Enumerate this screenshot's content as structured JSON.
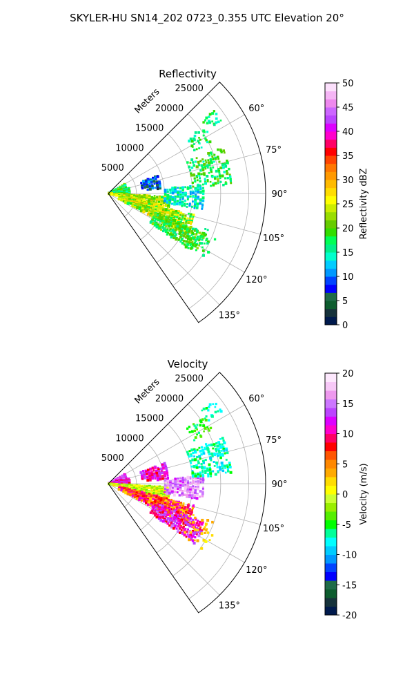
{
  "suptitle": "SKYLER-HU  SN14_202  0723_0.355 UTC Elevation 20°",
  "chart_data": [
    {
      "type": "scatter",
      "title": "Reflectivity",
      "r_axis_label": "Meters",
      "r_ticks": [
        "5000",
        "10000",
        "15000",
        "20000",
        "25000"
      ],
      "angle_ticks": [
        "60°",
        "75°",
        "90°",
        "105°",
        "120°",
        "135°"
      ],
      "colorbar": {
        "label": "Reflectivity dBZ",
        "range": [
          0,
          50
        ],
        "tick_labels": [
          "0",
          "5",
          "10",
          "15",
          "20",
          "25",
          "30",
          "35",
          "40",
          "45",
          "50"
        ]
      },
      "colormap": [
        "#001a4d",
        "#16323b",
        "#0d5c2e",
        "#1f6b48",
        "#0000ff",
        "#0044ff",
        "#0099ff",
        "#00ccff",
        "#00ffcc",
        "#00f08a",
        "#00ff55",
        "#33dd00",
        "#66cc00",
        "#99dd00",
        "#ccee00",
        "#ffff00",
        "#ffdd00",
        "#ffbb00",
        "#ff9900",
        "#ff7700",
        "#ff4400",
        "#ff0000",
        "#ff0066",
        "#ff00cc",
        "#dd00ff",
        "#bb44ff",
        "#cc66ff",
        "#ee88ee",
        "#f5b5f5",
        "#fce0fc"
      ],
      "data_range_m": [
        0,
        28000
      ],
      "azimuth_range_deg": [
        55,
        140
      ]
    },
    {
      "type": "scatter",
      "title": "Velocity",
      "r_axis_label": "Meters",
      "r_ticks": [
        "5000",
        "10000",
        "15000",
        "20000",
        "25000"
      ],
      "angle_ticks": [
        "60°",
        "75°",
        "90°",
        "105°",
        "120°",
        "135°"
      ],
      "colorbar": {
        "label": "Velocity (m/s)",
        "range": [
          -20,
          20
        ],
        "tick_labels": [
          "-20",
          "-15",
          "-10",
          "-5",
          "0",
          "5",
          "10",
          "15",
          "20"
        ]
      },
      "colormap": [
        "#001a4d",
        "#16323b",
        "#0d5c2e",
        "#1f6b48",
        "#0000ff",
        "#0044ff",
        "#0099ff",
        "#00ccff",
        "#00ffff",
        "#00ff99",
        "#00ff00",
        "#55ee00",
        "#99ee00",
        "#ccff33",
        "#ffff00",
        "#ffdd00",
        "#ffaa00",
        "#ff8800",
        "#ff5500",
        "#ff0000",
        "#ff0066",
        "#ff00cc",
        "#dd00ff",
        "#bb44ff",
        "#cc77ff",
        "#ee99ee",
        "#f7c8f7",
        "#fde8fd"
      ],
      "data_range_m": [
        0,
        28000
      ],
      "azimuth_range_deg": [
        55,
        140
      ]
    }
  ]
}
